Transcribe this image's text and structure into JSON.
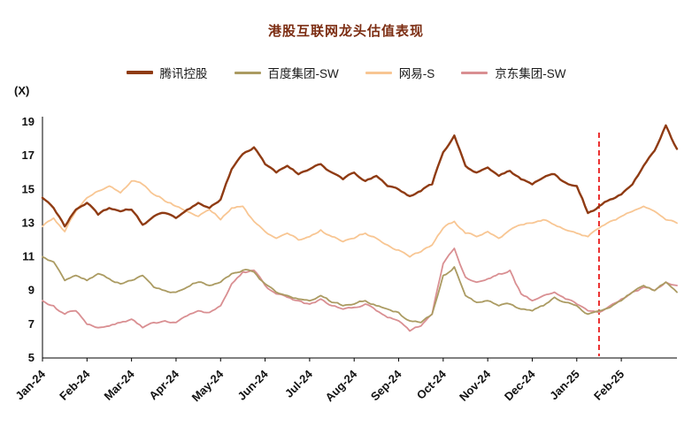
{
  "chart_data": {
    "type": "line",
    "title": "港股互联网龙头估值表现",
    "ylabel": "(X)",
    "xlabel": "",
    "ylim": [
      5,
      19
    ],
    "yticks": [
      5,
      7,
      9,
      11,
      13,
      15,
      17,
      19
    ],
    "grid": false,
    "legend_position": "top",
    "x_tick_labels": [
      "Jan-24",
      "Feb-24",
      "Mar-24",
      "Apr-24",
      "May-24",
      "Jun-24",
      "Jul-24",
      "Aug-24",
      "Sep-24",
      "Oct-24",
      "Nov-24",
      "Dec-24",
      "Jan-25",
      "Feb-25"
    ],
    "points_per_month": 4,
    "annotation_line": {
      "position_month_index": 12.5,
      "color": "#e60000",
      "style": "dashed"
    },
    "series": [
      {
        "key": "tencent",
        "name": "腾讯控股",
        "color": "#8f3b13",
        "values": [
          14.5,
          13.9,
          12.8,
          13.8,
          14.2,
          13.5,
          13.9,
          13.7,
          13.8,
          12.9,
          13.4,
          13.6,
          13.3,
          13.8,
          14.2,
          13.9,
          14.4,
          16.2,
          17.1,
          17.5,
          16.5,
          16.0,
          16.4,
          15.9,
          16.2,
          16.5,
          16.0,
          15.6,
          16.0,
          15.5,
          15.8,
          15.2,
          15.0,
          14.6,
          14.9,
          15.3,
          17.2,
          18.2,
          16.4,
          16.0,
          16.3,
          15.8,
          16.1,
          15.6,
          15.3,
          15.7,
          15.9,
          15.4,
          15.2,
          13.6,
          14.0,
          14.4,
          14.7,
          15.3,
          16.4,
          17.3,
          18.8,
          17.4
        ]
      },
      {
        "key": "baidu",
        "name": "百度集团-SW",
        "color": "#ab9b62",
        "values": [
          11.0,
          10.7,
          9.6,
          9.9,
          9.6,
          10.0,
          9.7,
          9.4,
          9.6,
          9.9,
          9.2,
          9.0,
          8.9,
          9.2,
          9.5,
          9.3,
          9.5,
          10.0,
          10.2,
          10.1,
          9.4,
          8.9,
          8.7,
          8.5,
          8.4,
          8.7,
          8.3,
          8.1,
          8.2,
          8.4,
          8.1,
          7.9,
          7.7,
          7.2,
          7.1,
          7.6,
          9.9,
          10.4,
          8.7,
          8.3,
          8.4,
          8.1,
          8.2,
          7.9,
          7.8,
          8.1,
          8.6,
          8.3,
          8.1,
          7.6,
          7.8,
          8.0,
          8.4,
          8.9,
          9.3,
          9.0,
          9.5,
          8.9
        ]
      },
      {
        "key": "netease",
        "name": "网易-S",
        "color": "#f8c693",
        "values": [
          12.8,
          13.3,
          12.5,
          13.7,
          14.5,
          14.9,
          15.2,
          14.8,
          15.5,
          15.3,
          14.7,
          14.3,
          14.0,
          13.7,
          13.4,
          13.8,
          13.2,
          13.9,
          14.0,
          13.1,
          12.5,
          12.1,
          12.4,
          12.0,
          12.2,
          12.6,
          12.2,
          11.9,
          12.1,
          12.4,
          12.1,
          11.7,
          11.4,
          11.0,
          11.3,
          11.7,
          12.7,
          13.1,
          12.4,
          12.2,
          12.5,
          12.1,
          12.6,
          12.9,
          13.0,
          13.2,
          12.9,
          12.6,
          12.4,
          12.2,
          12.7,
          13.1,
          13.4,
          13.7,
          14.0,
          13.7,
          13.2,
          13.0
        ]
      },
      {
        "key": "jd",
        "name": "京东集团-SW",
        "color": "#d98f92",
        "values": [
          8.4,
          8.1,
          7.6,
          7.8,
          7.0,
          6.8,
          6.9,
          7.1,
          7.3,
          6.8,
          7.1,
          7.2,
          7.1,
          7.5,
          7.8,
          7.7,
          8.1,
          9.4,
          10.1,
          10.2,
          9.3,
          8.8,
          8.6,
          8.4,
          8.2,
          8.5,
          8.1,
          7.9,
          8.0,
          8.2,
          7.8,
          7.4,
          7.2,
          6.6,
          6.9,
          7.6,
          10.6,
          11.5,
          9.8,
          9.5,
          9.7,
          10.0,
          10.2,
          8.8,
          8.4,
          8.7,
          8.9,
          8.5,
          8.2,
          7.8,
          7.7,
          8.1,
          8.5,
          8.9,
          9.2,
          9.0,
          9.5,
          9.3
        ]
      }
    ]
  }
}
